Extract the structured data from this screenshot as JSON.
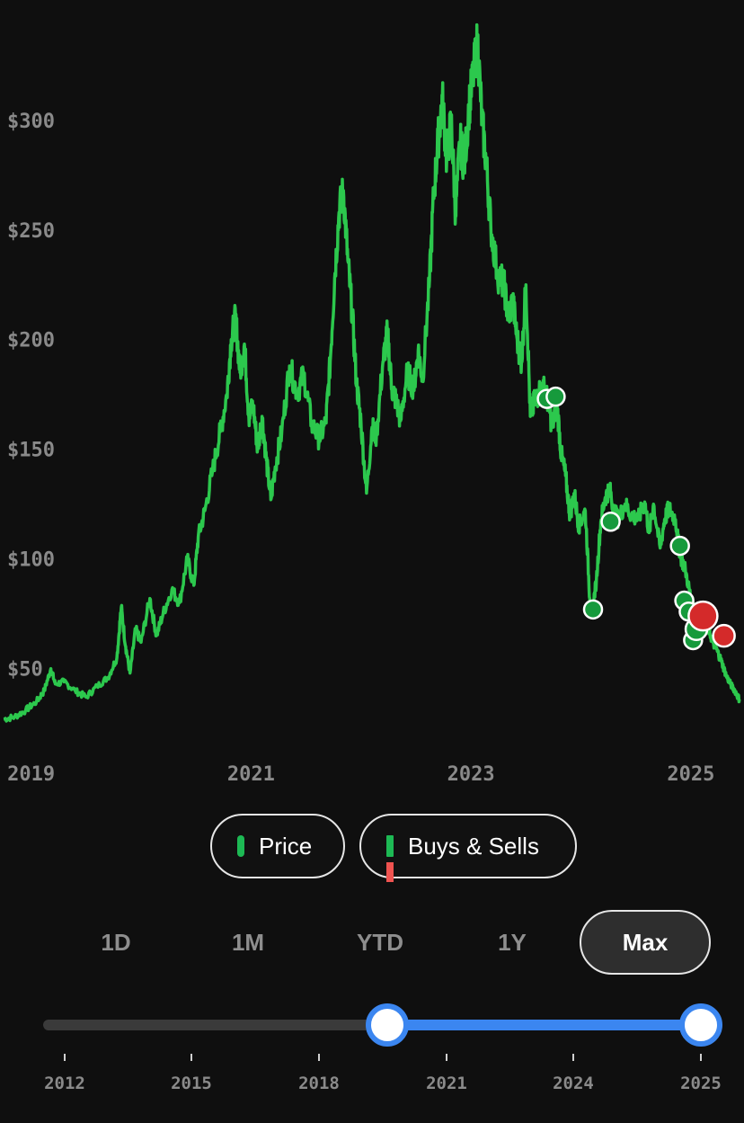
{
  "chart_data": {
    "type": "line",
    "y_tick_labels": [
      "$300",
      "$250",
      "$200",
      "$150",
      "$100",
      "$50"
    ],
    "y_ticks": [
      300,
      250,
      200,
      150,
      100,
      50
    ],
    "x_tick_labels": [
      "2019",
      "2021",
      "2023",
      "2025"
    ],
    "x_ticks": [
      2019.0,
      2021.0,
      2023.0,
      2025.0
    ],
    "ylim": [
      22,
      345
    ],
    "xlim": [
      2018.75,
      2025.45
    ],
    "grid": false,
    "series": [
      {
        "color": "#2cc84d",
        "points": [
          [
            2018.75,
            27
          ],
          [
            2018.85,
            28
          ],
          [
            2018.95,
            31
          ],
          [
            2019.05,
            35
          ],
          [
            2019.12,
            40
          ],
          [
            2019.18,
            50
          ],
          [
            2019.22,
            43
          ],
          [
            2019.3,
            44
          ],
          [
            2019.4,
            40
          ],
          [
            2019.5,
            37
          ],
          [
            2019.6,
            42
          ],
          [
            2019.7,
            46
          ],
          [
            2019.78,
            55
          ],
          [
            2019.82,
            78
          ],
          [
            2019.86,
            60
          ],
          [
            2019.9,
            48
          ],
          [
            2019.95,
            68
          ],
          [
            2020.0,
            62
          ],
          [
            2020.08,
            82
          ],
          [
            2020.14,
            65
          ],
          [
            2020.2,
            75
          ],
          [
            2020.28,
            86
          ],
          [
            2020.35,
            80
          ],
          [
            2020.42,
            100
          ],
          [
            2020.48,
            88
          ],
          [
            2020.52,
            110
          ],
          [
            2020.58,
            122
          ],
          [
            2020.65,
            140
          ],
          [
            2020.72,
            158
          ],
          [
            2020.78,
            175
          ],
          [
            2020.82,
            200
          ],
          [
            2020.86,
            210
          ],
          [
            2020.9,
            185
          ],
          [
            2020.94,
            198
          ],
          [
            2020.98,
            165
          ],
          [
            2021.02,
            170
          ],
          [
            2021.06,
            150
          ],
          [
            2021.1,
            165
          ],
          [
            2021.14,
            145
          ],
          [
            2021.18,
            127
          ],
          [
            2021.22,
            142
          ],
          [
            2021.28,
            158
          ],
          [
            2021.35,
            188
          ],
          [
            2021.42,
            176
          ],
          [
            2021.48,
            184
          ],
          [
            2021.55,
            162
          ],
          [
            2021.62,
            155
          ],
          [
            2021.68,
            162
          ],
          [
            2021.72,
            190
          ],
          [
            2021.76,
            228
          ],
          [
            2021.8,
            258
          ],
          [
            2021.84,
            268
          ],
          [
            2021.88,
            236
          ],
          [
            2021.92,
            212
          ],
          [
            2021.96,
            180
          ],
          [
            2022.0,
            162
          ],
          [
            2022.05,
            130
          ],
          [
            2022.1,
            160
          ],
          [
            2022.14,
            156
          ],
          [
            2022.2,
            190
          ],
          [
            2022.24,
            203
          ],
          [
            2022.28,
            178
          ],
          [
            2022.32,
            172
          ],
          [
            2022.36,
            163
          ],
          [
            2022.42,
            185
          ],
          [
            2022.48,
            178
          ],
          [
            2022.52,
            195
          ],
          [
            2022.56,
            182
          ],
          [
            2022.62,
            224
          ],
          [
            2022.66,
            265
          ],
          [
            2022.7,
            290
          ],
          [
            2022.74,
            310
          ],
          [
            2022.78,
            282
          ],
          [
            2022.82,
            300
          ],
          [
            2022.86,
            258
          ],
          [
            2022.9,
            290
          ],
          [
            2022.94,
            280
          ],
          [
            2022.98,
            305
          ],
          [
            2023.02,
            320
          ],
          [
            2023.06,
            336
          ],
          [
            2023.1,
            300
          ],
          [
            2023.14,
            280
          ],
          [
            2023.18,
            252
          ],
          [
            2023.24,
            230
          ],
          [
            2023.3,
            225
          ],
          [
            2023.34,
            210
          ],
          [
            2023.38,
            218
          ],
          [
            2023.42,
            200
          ],
          [
            2023.46,
            190
          ],
          [
            2023.5,
            225
          ],
          [
            2023.54,
            165
          ],
          [
            2023.58,
            172
          ],
          [
            2023.62,
            176
          ],
          [
            2023.66,
            178
          ],
          [
            2023.7,
            172
          ],
          [
            2023.74,
            160
          ],
          [
            2023.78,
            172
          ],
          [
            2023.82,
            148
          ],
          [
            2023.86,
            138
          ],
          [
            2023.9,
            120
          ],
          [
            2023.94,
            130
          ],
          [
            2023.98,
            115
          ],
          [
            2024.04,
            122
          ],
          [
            2024.08,
            82
          ],
          [
            2024.1,
            75
          ],
          [
            2024.14,
            90
          ],
          [
            2024.18,
            117
          ],
          [
            2024.22,
            128
          ],
          [
            2024.26,
            132
          ],
          [
            2024.3,
            122
          ],
          [
            2024.34,
            118
          ],
          [
            2024.4,
            125
          ],
          [
            2024.46,
            120
          ],
          [
            2024.52,
            118
          ],
          [
            2024.58,
            126
          ],
          [
            2024.62,
            112
          ],
          [
            2024.66,
            125
          ],
          [
            2024.72,
            105
          ],
          [
            2024.76,
            118
          ],
          [
            2024.8,
            123
          ],
          [
            2024.86,
            118
          ],
          [
            2024.9,
            102
          ],
          [
            2024.95,
            95
          ],
          [
            2025.0,
            82
          ],
          [
            2025.04,
            75
          ],
          [
            2025.08,
            72
          ],
          [
            2025.12,
            70
          ],
          [
            2025.16,
            68
          ],
          [
            2025.2,
            62
          ],
          [
            2025.24,
            58
          ],
          [
            2025.28,
            53
          ],
          [
            2025.32,
            47
          ],
          [
            2025.36,
            43
          ],
          [
            2025.4,
            40
          ],
          [
            2025.44,
            36
          ]
        ]
      }
    ],
    "markers": [
      {
        "x": 2023.69,
        "y": 173,
        "kind": "buy",
        "size": "small"
      },
      {
        "x": 2023.77,
        "y": 174,
        "kind": "buy",
        "size": "small"
      },
      {
        "x": 2024.11,
        "y": 77,
        "kind": "buy",
        "size": "small"
      },
      {
        "x": 2024.27,
        "y": 117,
        "kind": "buy",
        "size": "small"
      },
      {
        "x": 2024.9,
        "y": 106,
        "kind": "buy",
        "size": "small"
      },
      {
        "x": 2024.94,
        "y": 81,
        "kind": "buy",
        "size": "small"
      },
      {
        "x": 2024.98,
        "y": 76,
        "kind": "buy",
        "size": "small"
      },
      {
        "x": 2025.02,
        "y": 63,
        "kind": "buy",
        "size": "small"
      },
      {
        "x": 2025.05,
        "y": 68,
        "kind": "buy",
        "size": "medium"
      },
      {
        "x": 2025.11,
        "y": 74,
        "kind": "sell",
        "size": "large"
      },
      {
        "x": 2025.3,
        "y": 65,
        "kind": "sell",
        "size": "medium"
      }
    ],
    "colors": {
      "line": "#2cc84d",
      "buy": "#169a3c",
      "sell": "#d42a2a"
    }
  },
  "toggles": {
    "price_label": "Price",
    "buys_sells_label": "Buys & Sells"
  },
  "range_tabs": [
    "1D",
    "1M",
    "YTD",
    "1Y",
    "Max"
  ],
  "active_tab": "Max",
  "range_slider": {
    "tick_labels": [
      "2012",
      "2015",
      "2018",
      "2021",
      "2024",
      "2025"
    ],
    "selected_start": 2019.75,
    "selected_end": 2025.0
  }
}
